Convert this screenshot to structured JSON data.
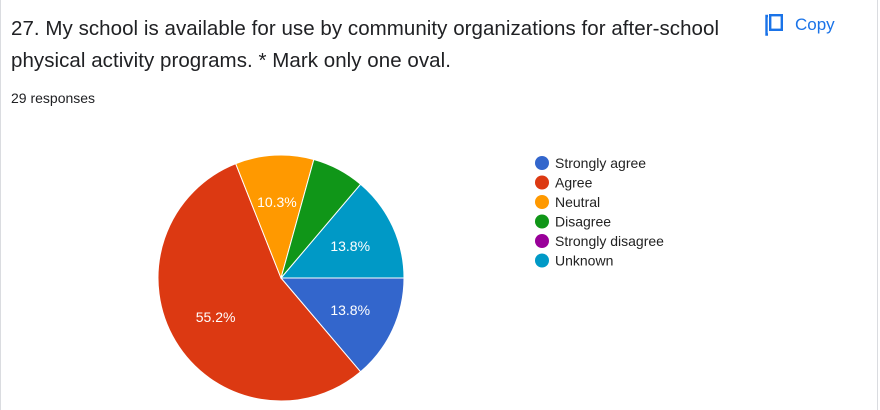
{
  "question": {
    "title": "27.  My school is available for use by community organizations for after-school physical activity programs. * Mark only one oval.",
    "responses": "29 responses"
  },
  "copy_button": {
    "label": "Copy",
    "icon": "copy-icon",
    "color": "#1a73e8"
  },
  "chart_data": {
    "type": "pie",
    "legend_position": "right",
    "series": [
      {
        "name": "Strongly agree",
        "value": 13.8,
        "label": "13.8%",
        "color": "#3366cc"
      },
      {
        "name": "Agree",
        "value": 55.2,
        "label": "55.2%",
        "color": "#dc3912"
      },
      {
        "name": "Neutral",
        "value": 10.3,
        "label": "10.3%",
        "color": "#ff9900"
      },
      {
        "name": "Disagree",
        "value": 6.9,
        "label": "",
        "color": "#109618"
      },
      {
        "name": "Strongly disagree",
        "value": 0,
        "label": "",
        "color": "#990099"
      },
      {
        "name": "Unknown",
        "value": 13.8,
        "label": "13.8%",
        "color": "#0099c6"
      }
    ]
  }
}
